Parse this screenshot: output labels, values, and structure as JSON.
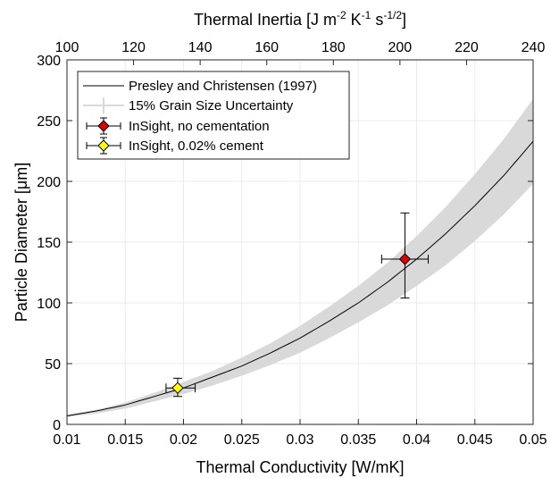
{
  "chart_data": {
    "type": "line",
    "title": "",
    "xlabel": "Thermal Conductivity [W/mK]",
    "ylabel": "Particle Diameter [μm]",
    "x2label": {
      "prefix": "Thermal Inertia [J m",
      "exp1": "-2",
      "mid1": " K",
      "exp2": "-1",
      "mid2": " s",
      "exp3": "-1/2",
      "suffix": "]"
    },
    "xlim": [
      0.01,
      0.05
    ],
    "ylim": [
      0,
      300
    ],
    "x2lim": [
      100,
      240
    ],
    "x_ticks": [
      "0.01",
      "0.015",
      "0.02",
      "0.025",
      "0.03",
      "0.035",
      "0.04",
      "0.045",
      "0.05"
    ],
    "x_tick_values": [
      0.01,
      0.015,
      0.02,
      0.025,
      0.03,
      0.035,
      0.04,
      0.045,
      0.05
    ],
    "y_ticks": [
      "0",
      "50",
      "100",
      "150",
      "200",
      "250",
      "300"
    ],
    "y_tick_values": [
      0,
      50,
      100,
      150,
      200,
      250,
      300
    ],
    "x2_ticks": [
      "100",
      "120",
      "140",
      "160",
      "180",
      "200",
      "220",
      "240"
    ],
    "x2_tick_values": [
      100,
      120,
      140,
      160,
      180,
      200,
      220,
      240
    ],
    "grid": true,
    "legend_position": "top-left",
    "series": [
      {
        "name": "Presley and Christensen (1997)",
        "kind": "line",
        "color": "#000000",
        "x": [
          0.01,
          0.0125,
          0.015,
          0.0175,
          0.02,
          0.0225,
          0.025,
          0.0275,
          0.03,
          0.0325,
          0.035,
          0.0375,
          0.04,
          0.0425,
          0.045,
          0.0475,
          0.05
        ],
        "y": [
          7,
          11,
          16,
          23,
          30,
          39,
          48,
          59,
          71,
          85,
          100,
          117,
          136,
          157,
          180,
          205,
          233
        ]
      },
      {
        "name": "15% Grain Size Uncertainty",
        "kind": "band",
        "color": "#d9d9d9",
        "x": [
          0.01,
          0.0125,
          0.015,
          0.0175,
          0.02,
          0.0225,
          0.025,
          0.0275,
          0.03,
          0.0325,
          0.035,
          0.0375,
          0.04,
          0.0425,
          0.045,
          0.0475,
          0.05
        ],
        "y_lower": [
          6,
          9,
          13,
          19,
          25,
          32,
          40,
          49,
          59,
          71,
          84,
          98,
          114,
          131,
          151,
          173,
          198
        ],
        "y_upper": [
          8,
          12,
          18,
          26,
          35,
          44,
          55,
          67,
          81,
          97,
          114,
          133,
          155,
          179,
          206,
          235,
          268
        ]
      },
      {
        "name": "InSight, no cementation",
        "kind": "errorbar",
        "color": "#e00000",
        "x": 0.039,
        "y": 136,
        "x_err": [
          0.037,
          0.041
        ],
        "y_err": [
          104,
          174
        ]
      },
      {
        "name": "InSight, 0.02% cement",
        "kind": "errorbar",
        "color": "#ffff00",
        "x": 0.0195,
        "y": 30,
        "x_err": [
          0.0185,
          0.021
        ],
        "y_err": [
          23,
          38
        ]
      }
    ]
  }
}
